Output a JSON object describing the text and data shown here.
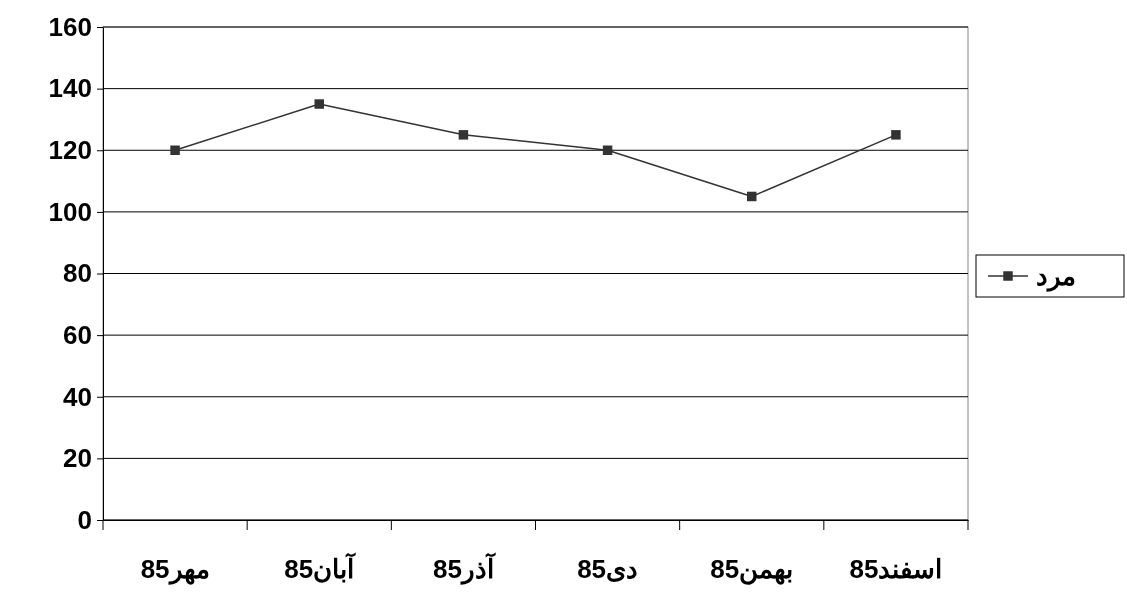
{
  "chart_data": {
    "type": "line",
    "categories": [
      "مهر85",
      "آبان85",
      "آذر85",
      "دی85",
      "بهمن85",
      "اسفند85"
    ],
    "series": [
      {
        "name": "مرد",
        "color": "#333333",
        "values": [
          120,
          135,
          125,
          120,
          105,
          125
        ]
      }
    ],
    "ylim": [
      0,
      160
    ],
    "yticks": [
      0,
      20,
      40,
      60,
      80,
      100,
      120,
      140,
      160
    ],
    "grid": "y",
    "legend": "right",
    "marker": "square",
    "line_style": "solid"
  }
}
